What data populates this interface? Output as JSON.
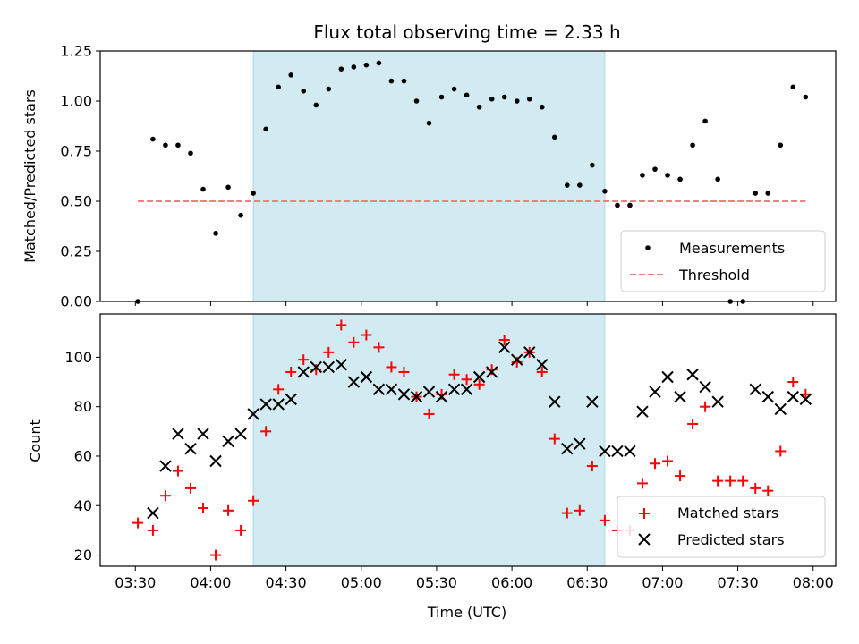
{
  "chart_data": [
    {
      "type": "scatter",
      "title": "Flux total observing time = 2.33 h",
      "xlabel": "",
      "ylabel": "Matched/Predicted stars",
      "ylim": [
        0,
        1.25
      ],
      "xlim": [
        "03:16",
        "08:09"
      ],
      "yticks": [
        "0.00",
        "0.25",
        "0.50",
        "0.75",
        "1.00",
        "1.25"
      ],
      "xticks": [
        "03:30",
        "04:00",
        "04:30",
        "05:00",
        "05:30",
        "06:00",
        "06:30",
        "07:00",
        "07:30",
        "08:00"
      ],
      "shaded_interval": [
        "04:17",
        "06:37"
      ],
      "legend_position": "lower-right",
      "series": [
        {
          "name": "Measurements",
          "marker": "dot",
          "color": "#000000",
          "points": [
            [
              "03:31",
              0.0
            ],
            [
              "03:37",
              0.81
            ],
            [
              "03:42",
              0.78
            ],
            [
              "03:47",
              0.78
            ],
            [
              "03:52",
              0.74
            ],
            [
              "03:57",
              0.56
            ],
            [
              "04:02",
              0.34
            ],
            [
              "04:07",
              0.57
            ],
            [
              "04:12",
              0.43
            ],
            [
              "04:17",
              0.54
            ],
            [
              "04:22",
              0.86
            ],
            [
              "04:27",
              1.07
            ],
            [
              "04:32",
              1.13
            ],
            [
              "04:37",
              1.05
            ],
            [
              "04:42",
              0.98
            ],
            [
              "04:47",
              1.06
            ],
            [
              "04:52",
              1.16
            ],
            [
              "04:57",
              1.17
            ],
            [
              "05:02",
              1.18
            ],
            [
              "05:07",
              1.19
            ],
            [
              "05:12",
              1.1
            ],
            [
              "05:17",
              1.1
            ],
            [
              "05:22",
              1.0
            ],
            [
              "05:27",
              0.89
            ],
            [
              "05:32",
              1.02
            ],
            [
              "05:37",
              1.06
            ],
            [
              "05:42",
              1.03
            ],
            [
              "05:47",
              0.97
            ],
            [
              "05:52",
              1.01
            ],
            [
              "05:57",
              1.02
            ],
            [
              "06:02",
              1.0
            ],
            [
              "06:07",
              1.01
            ],
            [
              "06:12",
              0.97
            ],
            [
              "06:17",
              0.82
            ],
            [
              "06:22",
              0.58
            ],
            [
              "06:27",
              0.58
            ],
            [
              "06:32",
              0.68
            ],
            [
              "06:37",
              0.55
            ],
            [
              "06:42",
              0.48
            ],
            [
              "06:47",
              0.48
            ],
            [
              "06:52",
              0.63
            ],
            [
              "06:57",
              0.66
            ],
            [
              "07:02",
              0.63
            ],
            [
              "07:07",
              0.61
            ],
            [
              "07:12",
              0.78
            ],
            [
              "07:17",
              0.9
            ],
            [
              "07:22",
              0.61
            ],
            [
              "07:27",
              0.0
            ],
            [
              "07:32",
              0.0
            ],
            [
              "07:37",
              0.54
            ],
            [
              "07:42",
              0.54
            ],
            [
              "07:47",
              0.78
            ],
            [
              "07:52",
              1.07
            ],
            [
              "07:57",
              1.02
            ]
          ]
        },
        {
          "name": "Threshold",
          "marker": "dashed-line",
          "color": "#f08080",
          "points": [
            [
              "03:31",
              0.5
            ],
            [
              "07:57",
              0.5
            ]
          ]
        }
      ]
    },
    {
      "type": "scatter",
      "title": "",
      "xlabel": "Time (UTC)",
      "ylabel": "Count",
      "ylim": [
        15.5,
        117.5
      ],
      "xlim": [
        "03:16",
        "08:09"
      ],
      "yticks": [
        "20",
        "40",
        "60",
        "80",
        "100"
      ],
      "xticks": [
        "03:30",
        "04:00",
        "04:30",
        "05:00",
        "05:30",
        "06:00",
        "06:30",
        "07:00",
        "07:30",
        "08:00"
      ],
      "shaded_interval": [
        "04:17",
        "06:37"
      ],
      "legend_position": "lower-right",
      "series": [
        {
          "name": "Matched stars",
          "marker": "plus",
          "color": "#ff0000",
          "points": [
            [
              "03:31",
              33
            ],
            [
              "03:37",
              30
            ],
            [
              "03:42",
              44
            ],
            [
              "03:47",
              54
            ],
            [
              "03:52",
              47
            ],
            [
              "03:57",
              39
            ],
            [
              "04:02",
              20
            ],
            [
              "04:07",
              38
            ],
            [
              "04:12",
              30
            ],
            [
              "04:17",
              42
            ],
            [
              "04:22",
              70
            ],
            [
              "04:27",
              87
            ],
            [
              "04:32",
              94
            ],
            [
              "04:37",
              99
            ],
            [
              "04:42",
              95
            ],
            [
              "04:47",
              102
            ],
            [
              "04:52",
              113
            ],
            [
              "04:57",
              106
            ],
            [
              "05:02",
              109
            ],
            [
              "05:07",
              104
            ],
            [
              "05:12",
              96
            ],
            [
              "05:17",
              94
            ],
            [
              "05:22",
              84
            ],
            [
              "05:27",
              77
            ],
            [
              "05:32",
              85
            ],
            [
              "05:37",
              93
            ],
            [
              "05:42",
              91
            ],
            [
              "05:47",
              89
            ],
            [
              "05:52",
              95
            ],
            [
              "05:57",
              107
            ],
            [
              "06:02",
              98
            ],
            [
              "06:07",
              102
            ],
            [
              "06:12",
              94
            ],
            [
              "06:17",
              67
            ],
            [
              "06:22",
              37
            ],
            [
              "06:27",
              38
            ],
            [
              "06:32",
              56
            ],
            [
              "06:37",
              34
            ],
            [
              "06:42",
              30
            ],
            [
              "06:47",
              30
            ],
            [
              "06:52",
              49
            ],
            [
              "06:57",
              57
            ],
            [
              "07:02",
              58
            ],
            [
              "07:07",
              52
            ],
            [
              "07:12",
              73
            ],
            [
              "07:17",
              80
            ],
            [
              "07:22",
              50
            ],
            [
              "07:27",
              50
            ],
            [
              "07:32",
              50
            ],
            [
              "07:37",
              47
            ],
            [
              "07:42",
              46
            ],
            [
              "07:47",
              62
            ],
            [
              "07:52",
              90
            ],
            [
              "07:57",
              85
            ]
          ]
        },
        {
          "name": "Predicted stars",
          "marker": "x",
          "color": "#000000",
          "points": [
            [
              "03:37",
              37
            ],
            [
              "03:42",
              56
            ],
            [
              "03:47",
              69
            ],
            [
              "03:52",
              63
            ],
            [
              "03:57",
              69
            ],
            [
              "04:02",
              58
            ],
            [
              "04:07",
              66
            ],
            [
              "04:12",
              69
            ],
            [
              "04:17",
              77
            ],
            [
              "04:22",
              81
            ],
            [
              "04:27",
              81
            ],
            [
              "04:32",
              83
            ],
            [
              "04:37",
              94
            ],
            [
              "04:42",
              96
            ],
            [
              "04:47",
              96
            ],
            [
              "04:52",
              97
            ],
            [
              "04:57",
              90
            ],
            [
              "05:02",
              92
            ],
            [
              "05:07",
              87
            ],
            [
              "05:12",
              87
            ],
            [
              "05:17",
              85
            ],
            [
              "05:22",
              84
            ],
            [
              "05:27",
              86
            ],
            [
              "05:32",
              84
            ],
            [
              "05:37",
              87
            ],
            [
              "05:42",
              87
            ],
            [
              "05:47",
              92
            ],
            [
              "05:52",
              94
            ],
            [
              "05:57",
              104
            ],
            [
              "06:02",
              99
            ],
            [
              "06:07",
              102
            ],
            [
              "06:12",
              97
            ],
            [
              "06:17",
              82
            ],
            [
              "06:22",
              63
            ],
            [
              "06:27",
              65
            ],
            [
              "06:32",
              82
            ],
            [
              "06:37",
              62
            ],
            [
              "06:42",
              62
            ],
            [
              "06:47",
              62
            ],
            [
              "06:52",
              78
            ],
            [
              "06:57",
              86
            ],
            [
              "07:02",
              92
            ],
            [
              "07:07",
              84
            ],
            [
              "07:12",
              93
            ],
            [
              "07:17",
              88
            ],
            [
              "07:22",
              82
            ],
            [
              "07:37",
              87
            ],
            [
              "07:42",
              84
            ],
            [
              "07:47",
              79
            ],
            [
              "07:52",
              84
            ],
            [
              "07:57",
              83
            ]
          ]
        }
      ]
    }
  ],
  "colors": {
    "shade": "#add8e6",
    "measurement": "#000000",
    "threshold": "#f08080",
    "matched": "#ff0000",
    "predicted": "#000000"
  }
}
